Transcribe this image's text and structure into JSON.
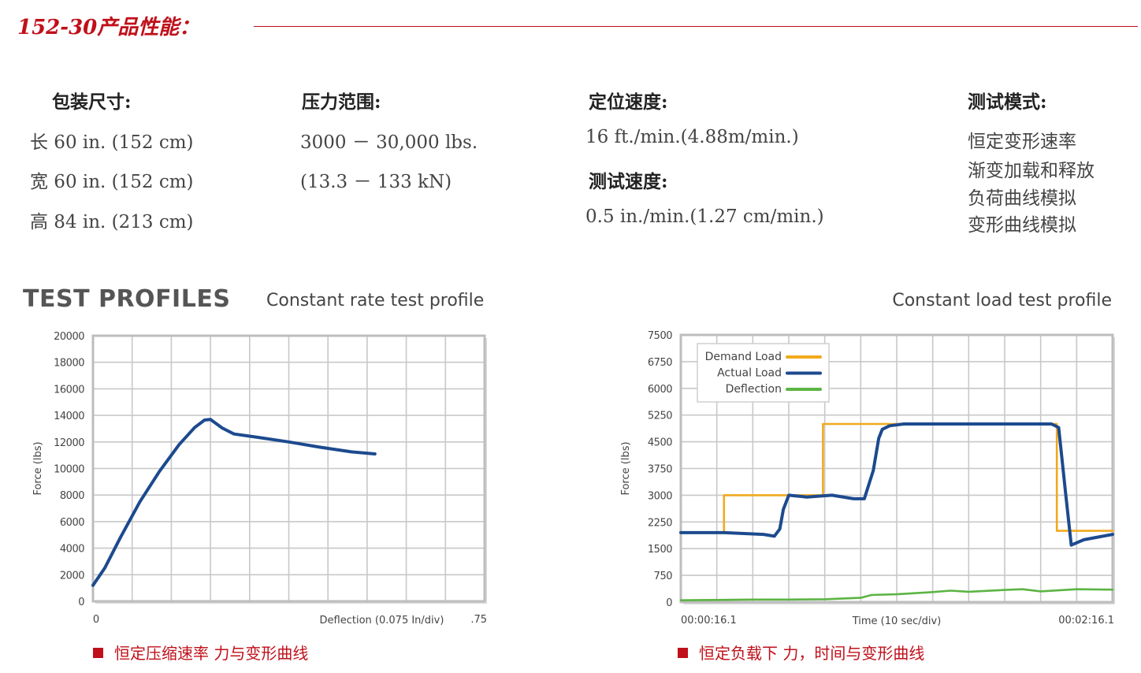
{
  "header": {
    "title": "152-30产品性能："
  },
  "specs": {
    "package": {
      "heading": "包装尺寸:",
      "lines": [
        "长 60 in. (152 cm)",
        "宽 60 in. (152 cm)",
        "高 84 in. (213 cm)"
      ]
    },
    "pressure": {
      "heading": "压力范围:",
      "lines": [
        "3000 － 30,000 lbs.",
        "(13.3 － 133 kN)"
      ]
    },
    "positioning": {
      "heading": "定位速度:",
      "lines": [
        "16 ft./min.(4.88m/min.)"
      ]
    },
    "test_speed": {
      "heading": "测试速度:",
      "lines": [
        "0.5 in./min.(1.27 cm/min.)"
      ]
    },
    "modes": {
      "heading": "测试模式:",
      "lines": [
        "恒定变形速率",
        "渐变加载和释放",
        "负荷曲线模拟",
        "变形曲线模拟"
      ]
    }
  },
  "section": {
    "brand": "TEST PROFILES"
  },
  "chart_data": [
    {
      "type": "line",
      "title": "Constant rate test profile",
      "xlabel": "Deflection (0.075 In/div)",
      "ylabel": "Force (lbs)",
      "x_tick_labels": [
        "0",
        ".75"
      ],
      "xlim": [
        0,
        10
      ],
      "ylim": [
        0,
        20000
      ],
      "y_ticks": [
        0,
        2000,
        4000,
        6000,
        8000,
        10000,
        12000,
        14000,
        16000,
        18000,
        20000
      ],
      "grid": true,
      "series": [
        {
          "color": "#1c4a8e",
          "x": [
            0,
            0.3,
            0.7,
            1.2,
            1.7,
            2.2,
            2.6,
            2.85,
            3.0,
            3.3,
            3.6,
            4.2,
            5.0,
            5.8,
            6.6,
            7.2
          ],
          "y": [
            1200,
            2500,
            4800,
            7500,
            9800,
            11800,
            13100,
            13650,
            13700,
            13050,
            12600,
            12350,
            12000,
            11600,
            11250,
            11100
          ]
        }
      ],
      "caption": "恒定压缩速率 力与变形曲线"
    },
    {
      "type": "line",
      "title": "Constant load test profile",
      "xlabel": "Time (10 sec/div)",
      "ylabel": "Force (lbs)",
      "x_tick_labels": [
        "00:00:16.1",
        "00:02:16.1"
      ],
      "xlim": [
        0,
        12
      ],
      "ylim": [
        0,
        7500
      ],
      "y_ticks": [
        0,
        750,
        1500,
        2250,
        3000,
        3750,
        4500,
        5250,
        6000,
        6750,
        7500
      ],
      "grid": true,
      "legend_position": "top-left",
      "series": [
        {
          "name": "Demand Load",
          "color": "#f0aa1e",
          "x": [
            1.2,
            1.2,
            3.95,
            3.95,
            10.45,
            10.45,
            12
          ],
          "y": [
            2000,
            3000,
            3000,
            5000,
            5000,
            2000,
            2000
          ]
        },
        {
          "name": "Actual Load",
          "color": "#1c4a8e",
          "x": [
            0,
            1.2,
            2.3,
            2.6,
            2.75,
            2.85,
            3.0,
            3.5,
            4.2,
            4.8,
            5.1,
            5.35,
            5.5,
            5.6,
            5.8,
            6.2,
            7.0,
            9.0,
            10.3,
            10.5,
            10.7,
            10.85,
            11.2,
            12
          ],
          "y": [
            1950,
            1950,
            1900,
            1850,
            2050,
            2600,
            3000,
            2950,
            3000,
            2900,
            2900,
            3700,
            4600,
            4850,
            4950,
            5000,
            5000,
            5000,
            5000,
            4900,
            3000,
            1600,
            1750,
            1900
          ]
        },
        {
          "name": "Deflection",
          "color": "#5cb443",
          "x": [
            0,
            1,
            2,
            3,
            4,
            5,
            5.3,
            6,
            7,
            7.5,
            8,
            9,
            9.5,
            10,
            11,
            12
          ],
          "y": [
            50,
            60,
            70,
            70,
            80,
            120,
            200,
            220,
            280,
            320,
            290,
            340,
            360,
            300,
            360,
            350
          ]
        }
      ],
      "caption": "恒定负载下 力，时间与变形曲线"
    }
  ]
}
